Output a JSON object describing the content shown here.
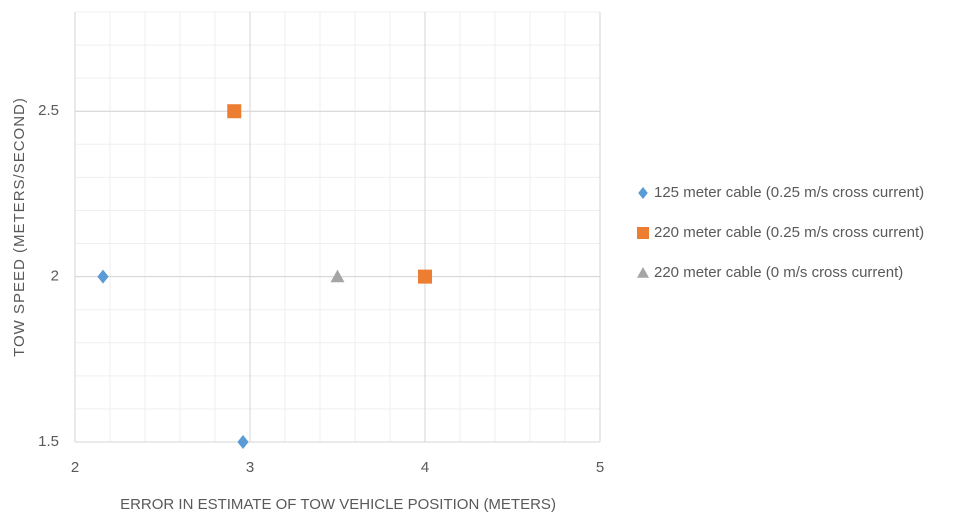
{
  "chart_data": {
    "type": "scatter",
    "x_label": "ERROR IN ESTIMATE OF TOW VEHICLE POSITION (METERS)",
    "y_label": "TOW SPEED (METERS/SECOND)",
    "xlim": [
      2,
      5
    ],
    "xticks": [
      2,
      3,
      4,
      5
    ],
    "ylim": [
      1.5,
      2.8
    ],
    "yticks": [
      1.5,
      2,
      2.5
    ],
    "grid": true,
    "x_minor_step": 0.2,
    "y_minor_step": 0.1,
    "legend": "right",
    "series": [
      {
        "name": "125 meter cable (0.25 m/s cross current)",
        "color": "#5b9bd5",
        "marker": "diamond",
        "x": [
          2.16,
          2.96
        ],
        "values": [
          2,
          1.5
        ]
      },
      {
        "name": "220 meter cable (0.25 m/s cross current)",
        "color": "#ed7d31",
        "marker": "square",
        "x": [
          2.91,
          4
        ],
        "values": [
          2.5,
          2
        ]
      },
      {
        "name": "220 meter cable (0 m/s cross current)",
        "color": "#a5a5a5",
        "marker": "triangle",
        "x": [
          3.5
        ],
        "values": [
          2
        ]
      }
    ]
  }
}
